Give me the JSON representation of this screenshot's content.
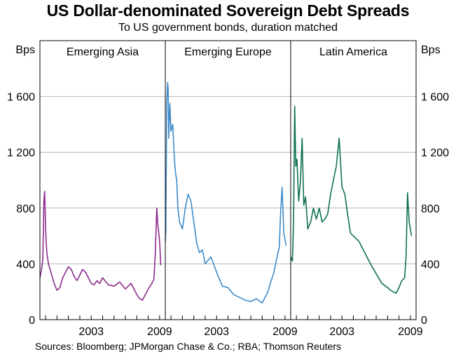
{
  "header": {
    "title": "US Dollar-denominated Sovereign Debt Spreads",
    "subtitle": "To US government bonds, duration matched"
  },
  "footer": {
    "sources": "Sources: Bloomberg; JPMorgan Chase & Co.; RBA; Thomson Reuters"
  },
  "chart_data": {
    "type": "line",
    "y_unit_left": "Bps",
    "y_unit_right": "Bps",
    "ylim": [
      0,
      2000
    ],
    "yticks": [
      0,
      400,
      800,
      1200,
      1600
    ],
    "ytick_labels": [
      "0",
      "400",
      "800",
      "1 200",
      "1 600"
    ],
    "xlim": [
      1998.5,
      2009.5
    ],
    "xticks": [
      2003,
      2009
    ],
    "xtick_labels": [
      "2003",
      "2009"
    ],
    "grid": true,
    "panels": [
      {
        "name": "Emerging Asia",
        "color": "#8b2c8c",
        "series": {
          "x": [
            1998.5,
            1998.62,
            1998.75,
            1998.85,
            1998.92,
            1999.0,
            1999.1,
            1999.25,
            1999.5,
            1999.75,
            2000.0,
            2000.25,
            2000.5,
            2000.75,
            2001.0,
            2001.25,
            2001.5,
            2001.75,
            2002.0,
            2002.25,
            2002.5,
            2002.75,
            2003.0,
            2003.25,
            2003.5,
            2003.75,
            2004.0,
            2004.5,
            2005.0,
            2005.5,
            2006.0,
            2006.5,
            2007.0,
            2007.25,
            2007.5,
            2007.75,
            2008.0,
            2008.25,
            2008.5,
            2008.62,
            2008.75,
            2008.85,
            2009.0,
            2009.1
          ],
          "y": [
            300,
            350,
            430,
            860,
            920,
            650,
            480,
            400,
            330,
            260,
            210,
            230,
            300,
            340,
            380,
            360,
            310,
            280,
            320,
            360,
            340,
            300,
            260,
            250,
            280,
            260,
            300,
            250,
            240,
            270,
            220,
            260,
            180,
            150,
            140,
            180,
            220,
            250,
            290,
            470,
            800,
            680,
            560,
            390
          ]
        }
      },
      {
        "name": "Emerging Europe",
        "color": "#3f8bc9",
        "series": {
          "x": [
            1998.5,
            1998.55,
            1998.62,
            1998.7,
            1998.75,
            1998.8,
            1998.9,
            1999.0,
            1999.15,
            1999.3,
            1999.4,
            1999.5,
            1999.6,
            1999.75,
            2000.0,
            2000.25,
            2000.5,
            2000.75,
            2001.0,
            2001.25,
            2001.5,
            2001.75,
            2002.0,
            2002.5,
            2003.0,
            2003.5,
            2004.0,
            2004.5,
            2005.0,
            2005.5,
            2006.0,
            2006.5,
            2007.0,
            2007.25,
            2007.5,
            2007.75,
            2008.0,
            2008.25,
            2008.5,
            2008.62,
            2008.75,
            2008.9,
            2009.1
          ],
          "y": [
            560,
            640,
            1550,
            1700,
            1650,
            1300,
            1550,
            1350,
            1400,
            1150,
            1050,
            1000,
            800,
            700,
            650,
            800,
            900,
            850,
            700,
            550,
            480,
            500,
            400,
            450,
            340,
            240,
            230,
            180,
            160,
            140,
            130,
            150,
            120,
            160,
            200,
            270,
            330,
            430,
            520,
            780,
            950,
            620,
            530
          ]
        }
      },
      {
        "name": "Latin America",
        "color": "#0e7151",
        "series": {
          "x": [
            1998.5,
            1998.65,
            1998.75,
            1998.85,
            1998.95,
            1999.05,
            1999.2,
            1999.35,
            1999.5,
            1999.65,
            1999.8,
            2000.0,
            2000.25,
            2000.5,
            2000.75,
            2001.0,
            2001.25,
            2001.5,
            2001.75,
            2002.0,
            2002.25,
            2002.5,
            2002.75,
            2003.0,
            2003.25,
            2003.5,
            2003.75,
            2004.0,
            2004.5,
            2005.0,
            2005.5,
            2006.0,
            2006.5,
            2007.0,
            2007.25,
            2007.5,
            2007.75,
            2008.0,
            2008.25,
            2008.5,
            2008.62,
            2008.75,
            2008.9,
            2009.1
          ],
          "y": [
            450,
            420,
            700,
            1530,
            1100,
            1150,
            850,
            980,
            1300,
            820,
            880,
            650,
            700,
            800,
            720,
            800,
            700,
            720,
            760,
            900,
            1000,
            1100,
            1300,
            950,
            900,
            750,
            620,
            600,
            560,
            480,
            400,
            330,
            260,
            230,
            210,
            200,
            190,
            230,
            280,
            300,
            450,
            910,
            700,
            600
          ]
        }
      }
    ]
  }
}
